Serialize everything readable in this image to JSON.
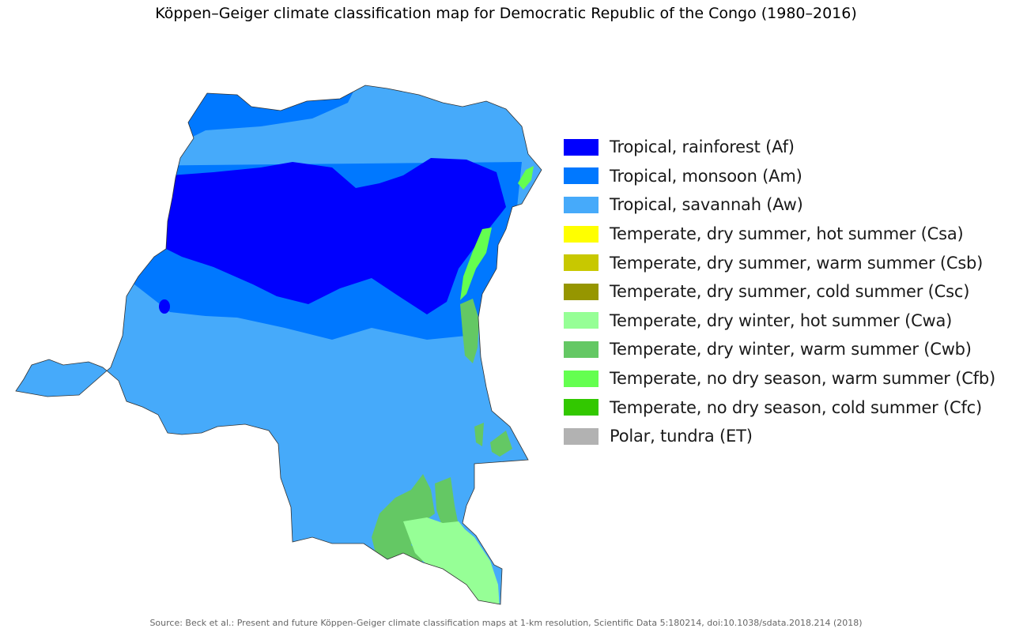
{
  "title": "Köppen–Geiger climate classification map for Democratic Republic of the Congo (1980–2016)",
  "legend": [
    {
      "label": "Tropical, rainforest (Af)",
      "color": "#0000fe"
    },
    {
      "label": "Tropical, monsoon (Am)",
      "color": "#0078ff"
    },
    {
      "label": "Tropical, savannah (Aw)",
      "color": "#46aafa"
    },
    {
      "label": "Temperate, dry summer, hot summer (Csa)",
      "color": "#ffff00"
    },
    {
      "label": "Temperate, dry summer, warm summer (Csb)",
      "color": "#c8c800"
    },
    {
      "label": "Temperate, dry summer, cold summer (Csc)",
      "color": "#969600"
    },
    {
      "label": "Temperate, dry winter, hot summer (Cwa)",
      "color": "#96ff96"
    },
    {
      "label": "Temperate, dry winter, warm summer (Cwb)",
      "color": "#64c864"
    },
    {
      "label": "Temperate, no dry season, warm summer (Cfb)",
      "color": "#64ff50"
    },
    {
      "label": "Temperate, no dry season, cold summer (Cfc)",
      "color": "#32c800"
    },
    {
      "label": "Polar, tundra (ET)",
      "color": "#b2b2b2"
    }
  ],
  "source": "Source: Beck et al.: Present and future Köppen-Geiger climate classification maps at 1-km resolution, Scientific Data 5:180214, doi:10.1038/sdata.2018.214 (2018)"
}
